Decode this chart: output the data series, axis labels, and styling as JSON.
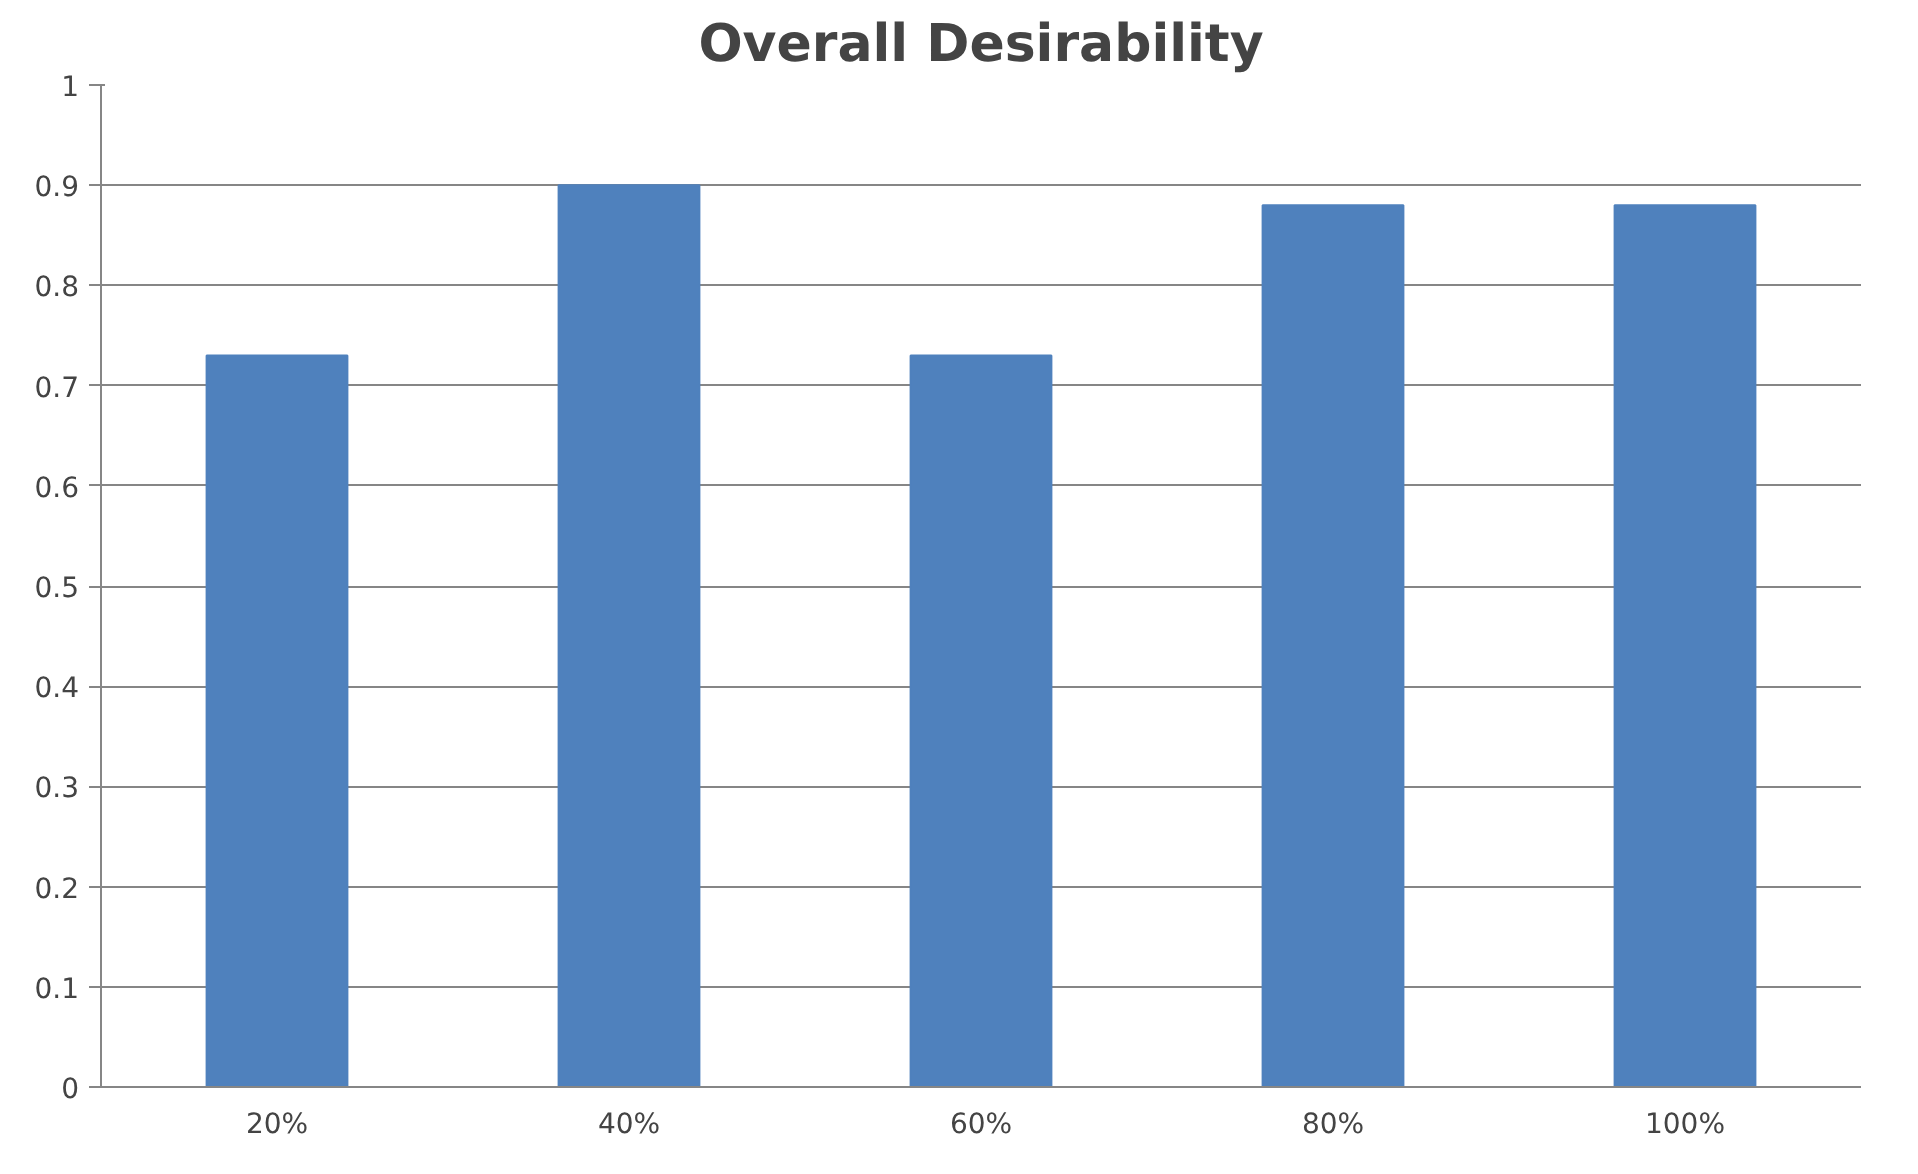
{
  "chart_data": {
    "type": "bar",
    "title": "Overall Desirability",
    "categories": [
      "20%",
      "40%",
      "60%",
      "80%",
      "100%"
    ],
    "values": [
      0.73,
      0.9,
      0.73,
      0.88,
      0.88
    ],
    "color": "#4f81bd",
    "ylim": [
      0,
      1
    ],
    "yticks": [
      0,
      0.1,
      0.2,
      0.3,
      0.4,
      0.5,
      0.6,
      0.7,
      0.8,
      0.9,
      1
    ],
    "grid": "y"
  }
}
